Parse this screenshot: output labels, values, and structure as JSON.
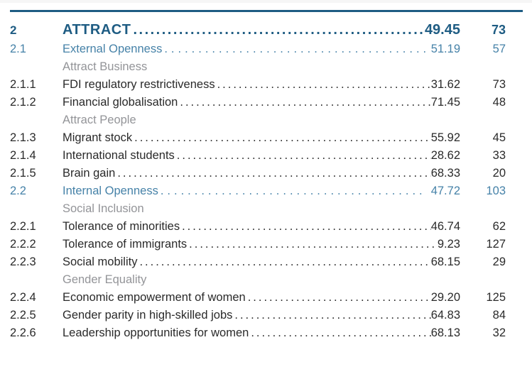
{
  "page": {
    "colors": {
      "rule_blue": "#1e5c83",
      "pillar_blue": "#1e5c83",
      "subpillar_teal": "#4682a8",
      "group_gray": "#939498",
      "indicator_black": "#2a2a2a",
      "background": "#ffffff"
    },
    "table": {
      "rows": [
        {
          "type": "pillar",
          "num": "2",
          "label": "ATTRACT",
          "score": "49.45",
          "rank": "73"
        },
        {
          "type": "subpillar",
          "num": "2.1",
          "label": "External Openness",
          "score": "51.19",
          "rank": "57"
        },
        {
          "type": "group",
          "num": "",
          "label": "Attract Business"
        },
        {
          "type": "indicator",
          "num": "2.1.1",
          "label": "FDI regulatory restrictiveness",
          "score": "31.62",
          "rank": "73"
        },
        {
          "type": "indicator",
          "num": "2.1.2",
          "label": "Financial globalisation",
          "score": "71.45",
          "rank": "48"
        },
        {
          "type": "group",
          "num": "",
          "label": "Attract People"
        },
        {
          "type": "indicator",
          "num": "2.1.3",
          "label": "Migrant stock",
          "score": "55.92",
          "rank": "45"
        },
        {
          "type": "indicator",
          "num": "2.1.4",
          "label": "International students",
          "score": "28.62",
          "rank": "33"
        },
        {
          "type": "indicator",
          "num": "2.1.5",
          "label": "Brain gain",
          "score": "68.33",
          "rank": "20"
        },
        {
          "type": "subpillar",
          "num": "2.2",
          "label": "Internal Openness",
          "score": "47.72",
          "rank": "103"
        },
        {
          "type": "group",
          "num": "",
          "label": "Social Inclusion"
        },
        {
          "type": "indicator",
          "num": "2.2.1",
          "label": "Tolerance of minorities",
          "score": "46.74",
          "rank": "62"
        },
        {
          "type": "indicator",
          "num": "2.2.2",
          "label": "Tolerance of immigrants",
          "score": "9.23",
          "rank": "127"
        },
        {
          "type": "indicator",
          "num": "2.2.3",
          "label": "Social mobility",
          "score": "68.15",
          "rank": "29"
        },
        {
          "type": "group",
          "num": "",
          "label": "Gender Equality"
        },
        {
          "type": "indicator",
          "num": "2.2.4",
          "label": "Economic empowerment of women",
          "score": "29.20",
          "rank": "125"
        },
        {
          "type": "indicator",
          "num": "2.2.5",
          "label": "Gender parity in high-skilled jobs",
          "score": "64.83",
          "rank": "84"
        },
        {
          "type": "indicator",
          "num": "2.2.6",
          "label": "Leadership opportunities for women",
          "score": "68.13",
          "rank": "32"
        }
      ]
    }
  }
}
